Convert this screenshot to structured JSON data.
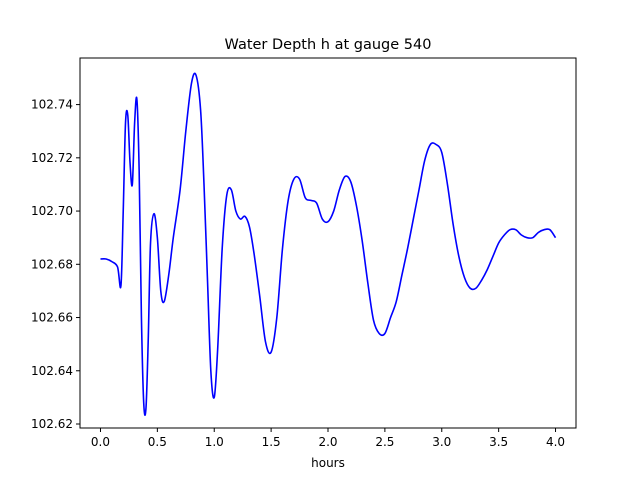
{
  "chart_data": {
    "type": "line",
    "title": "Water Depth h at gauge 540",
    "xlabel": "hours",
    "ylabel": "",
    "xlim": [
      -0.18,
      4.18
    ],
    "ylim": [
      102.6185,
      102.7575
    ],
    "grid": false,
    "legend": "none",
    "x_ticks": [
      0.0,
      0.5,
      1.0,
      1.5,
      2.0,
      2.5,
      3.0,
      3.5,
      4.0
    ],
    "x_tick_labels": [
      "0.0",
      "0.5",
      "1.0",
      "1.5",
      "2.0",
      "2.5",
      "3.0",
      "3.5",
      "4.0"
    ],
    "y_ticks": [
      102.62,
      102.64,
      102.66,
      102.68,
      102.7,
      102.72,
      102.74
    ],
    "y_tick_labels": [
      "102.62",
      "102.64",
      "102.66",
      "102.68",
      "102.70",
      "102.72",
      "102.74"
    ],
    "series": [
      {
        "color": "#0000ff",
        "x": [
          0.0,
          0.05,
          0.1,
          0.15,
          0.18,
          0.2,
          0.22,
          0.24,
          0.26,
          0.28,
          0.3,
          0.32,
          0.34,
          0.36,
          0.38,
          0.4,
          0.42,
          0.44,
          0.47,
          0.5,
          0.53,
          0.56,
          0.6,
          0.64,
          0.7,
          0.75,
          0.8,
          0.84,
          0.88,
          0.91,
          0.94,
          0.97,
          1.0,
          1.03,
          1.07,
          1.11,
          1.15,
          1.19,
          1.23,
          1.27,
          1.31,
          1.35,
          1.4,
          1.45,
          1.5,
          1.55,
          1.6,
          1.65,
          1.7,
          1.75,
          1.8,
          1.85,
          1.9,
          1.95,
          2.0,
          2.05,
          2.1,
          2.15,
          2.2,
          2.25,
          2.3,
          2.35,
          2.4,
          2.45,
          2.5,
          2.55,
          2.6,
          2.65,
          2.7,
          2.75,
          2.8,
          2.85,
          2.9,
          2.95,
          3.0,
          3.05,
          3.1,
          3.15,
          3.2,
          3.25,
          3.3,
          3.35,
          3.4,
          3.45,
          3.5,
          3.55,
          3.6,
          3.65,
          3.7,
          3.75,
          3.8,
          3.85,
          3.9,
          3.95,
          4.0
        ],
        "y": [
          102.682,
          102.682,
          102.681,
          102.679,
          102.672,
          102.7,
          102.733,
          102.736,
          102.718,
          102.71,
          102.733,
          102.742,
          102.715,
          102.66,
          102.628,
          102.626,
          102.652,
          102.688,
          102.699,
          102.69,
          102.67,
          102.666,
          102.676,
          102.69,
          102.708,
          102.73,
          102.748,
          102.751,
          102.738,
          102.71,
          102.675,
          102.64,
          102.63,
          102.648,
          102.686,
          102.706,
          102.708,
          102.7,
          102.697,
          102.698,
          102.694,
          102.684,
          102.668,
          102.651,
          102.647,
          102.66,
          102.686,
          102.704,
          102.712,
          102.712,
          102.705,
          102.704,
          102.703,
          102.697,
          102.696,
          102.7,
          102.708,
          102.713,
          102.711,
          102.702,
          102.689,
          102.673,
          102.659,
          102.654,
          102.654,
          102.66,
          102.666,
          102.676,
          102.686,
          102.697,
          102.708,
          102.719,
          102.725,
          102.725,
          102.722,
          102.71,
          102.695,
          102.683,
          102.675,
          102.671,
          102.671,
          102.674,
          102.678,
          102.683,
          102.688,
          102.691,
          102.693,
          102.693,
          102.691,
          102.69,
          102.69,
          102.692,
          102.693,
          102.693,
          102.69
        ]
      }
    ]
  }
}
